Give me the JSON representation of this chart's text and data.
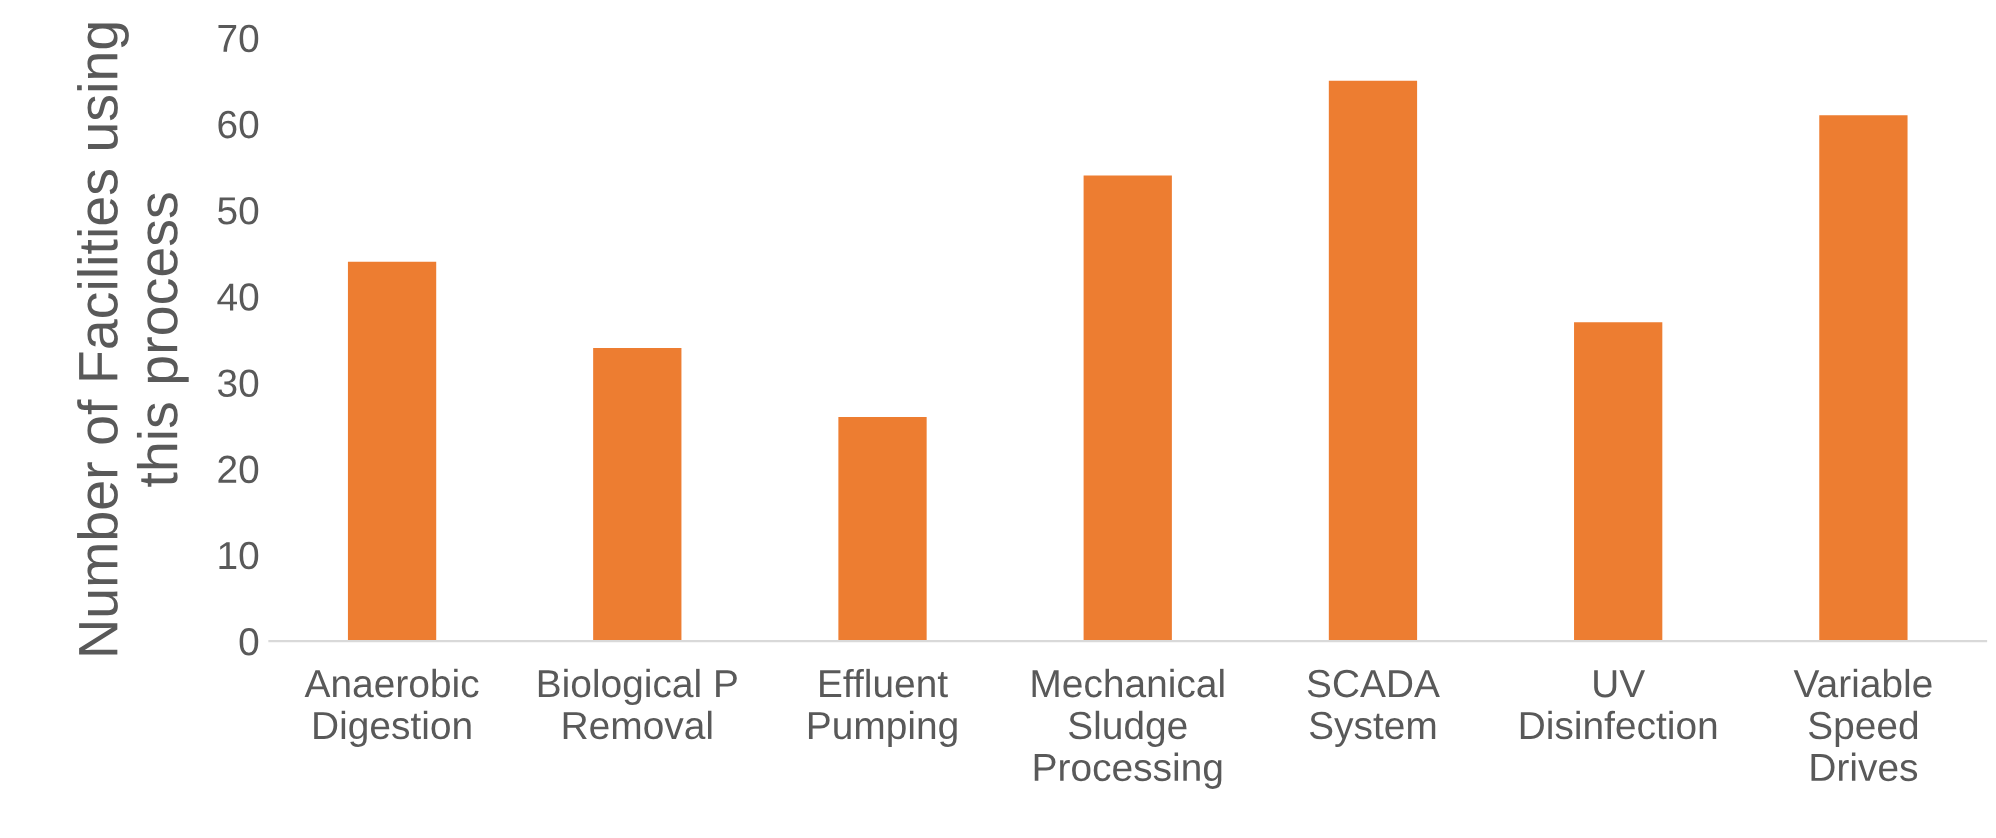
{
  "chart_data": {
    "type": "bar",
    "categories": [
      "Anaerobic\nDigestion",
      "Biological P\nRemoval",
      "Effluent\nPumping",
      "Mechanical\nSludge\nProcessing",
      "SCADA\nSystem",
      "UV\nDisinfection",
      "Variable\nSpeed\nDrives"
    ],
    "values": [
      44,
      34,
      26,
      54,
      65,
      37,
      61
    ],
    "color": "#ed7d31",
    "ylabel": "Number of Facilities using\nthis process",
    "ylim": [
      0,
      70
    ],
    "yticks": [
      0,
      10,
      20,
      30,
      40,
      50,
      60,
      70
    ],
    "grid": false
  }
}
